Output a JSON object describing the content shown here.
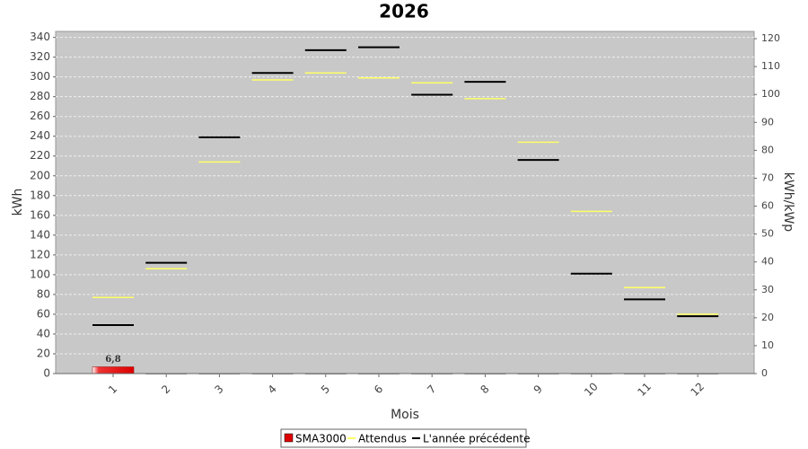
{
  "chart_data": {
    "type": "bar",
    "title": "2026",
    "categories": [
      "1",
      "2",
      "3",
      "4",
      "5",
      "6",
      "7",
      "8",
      "9",
      "10",
      "11",
      "12"
    ],
    "x_label": "Mois",
    "y_label": "kWh",
    "y2_label": "kWh/kWp",
    "ylim": [
      0,
      346
    ],
    "yticks": [
      0,
      20,
      40,
      60,
      80,
      100,
      120,
      140,
      160,
      180,
      200,
      220,
      240,
      260,
      280,
      300,
      320,
      340
    ],
    "y2lim": [
      0,
      122.6
    ],
    "y2ticks": [
      0,
      10,
      20,
      30,
      40,
      50,
      60,
      70,
      80,
      90,
      100,
      110,
      120
    ],
    "grid": true,
    "legend": "bottom",
    "series": [
      {
        "name": "SMA3000",
        "color": "#dd0000",
        "mark": "bar",
        "values": [
          6.8,
          0,
          0,
          0,
          0,
          0,
          0,
          0,
          0,
          0,
          0,
          0
        ],
        "value_labels": [
          "6,8",
          null,
          null,
          null,
          null,
          null,
          null,
          null,
          null,
          null,
          null,
          null
        ]
      },
      {
        "name": "Attendus",
        "color": "#ffff66",
        "mark": "dash",
        "values": [
          77,
          106,
          214,
          297,
          304,
          299,
          294,
          278,
          234,
          164,
          87,
          60
        ]
      },
      {
        "name": "L'année précédente",
        "color": "#000000",
        "mark": "dash",
        "values": [
          49,
          112,
          239,
          304,
          327,
          330,
          282,
          295,
          216,
          101,
          75,
          58
        ]
      }
    ]
  }
}
